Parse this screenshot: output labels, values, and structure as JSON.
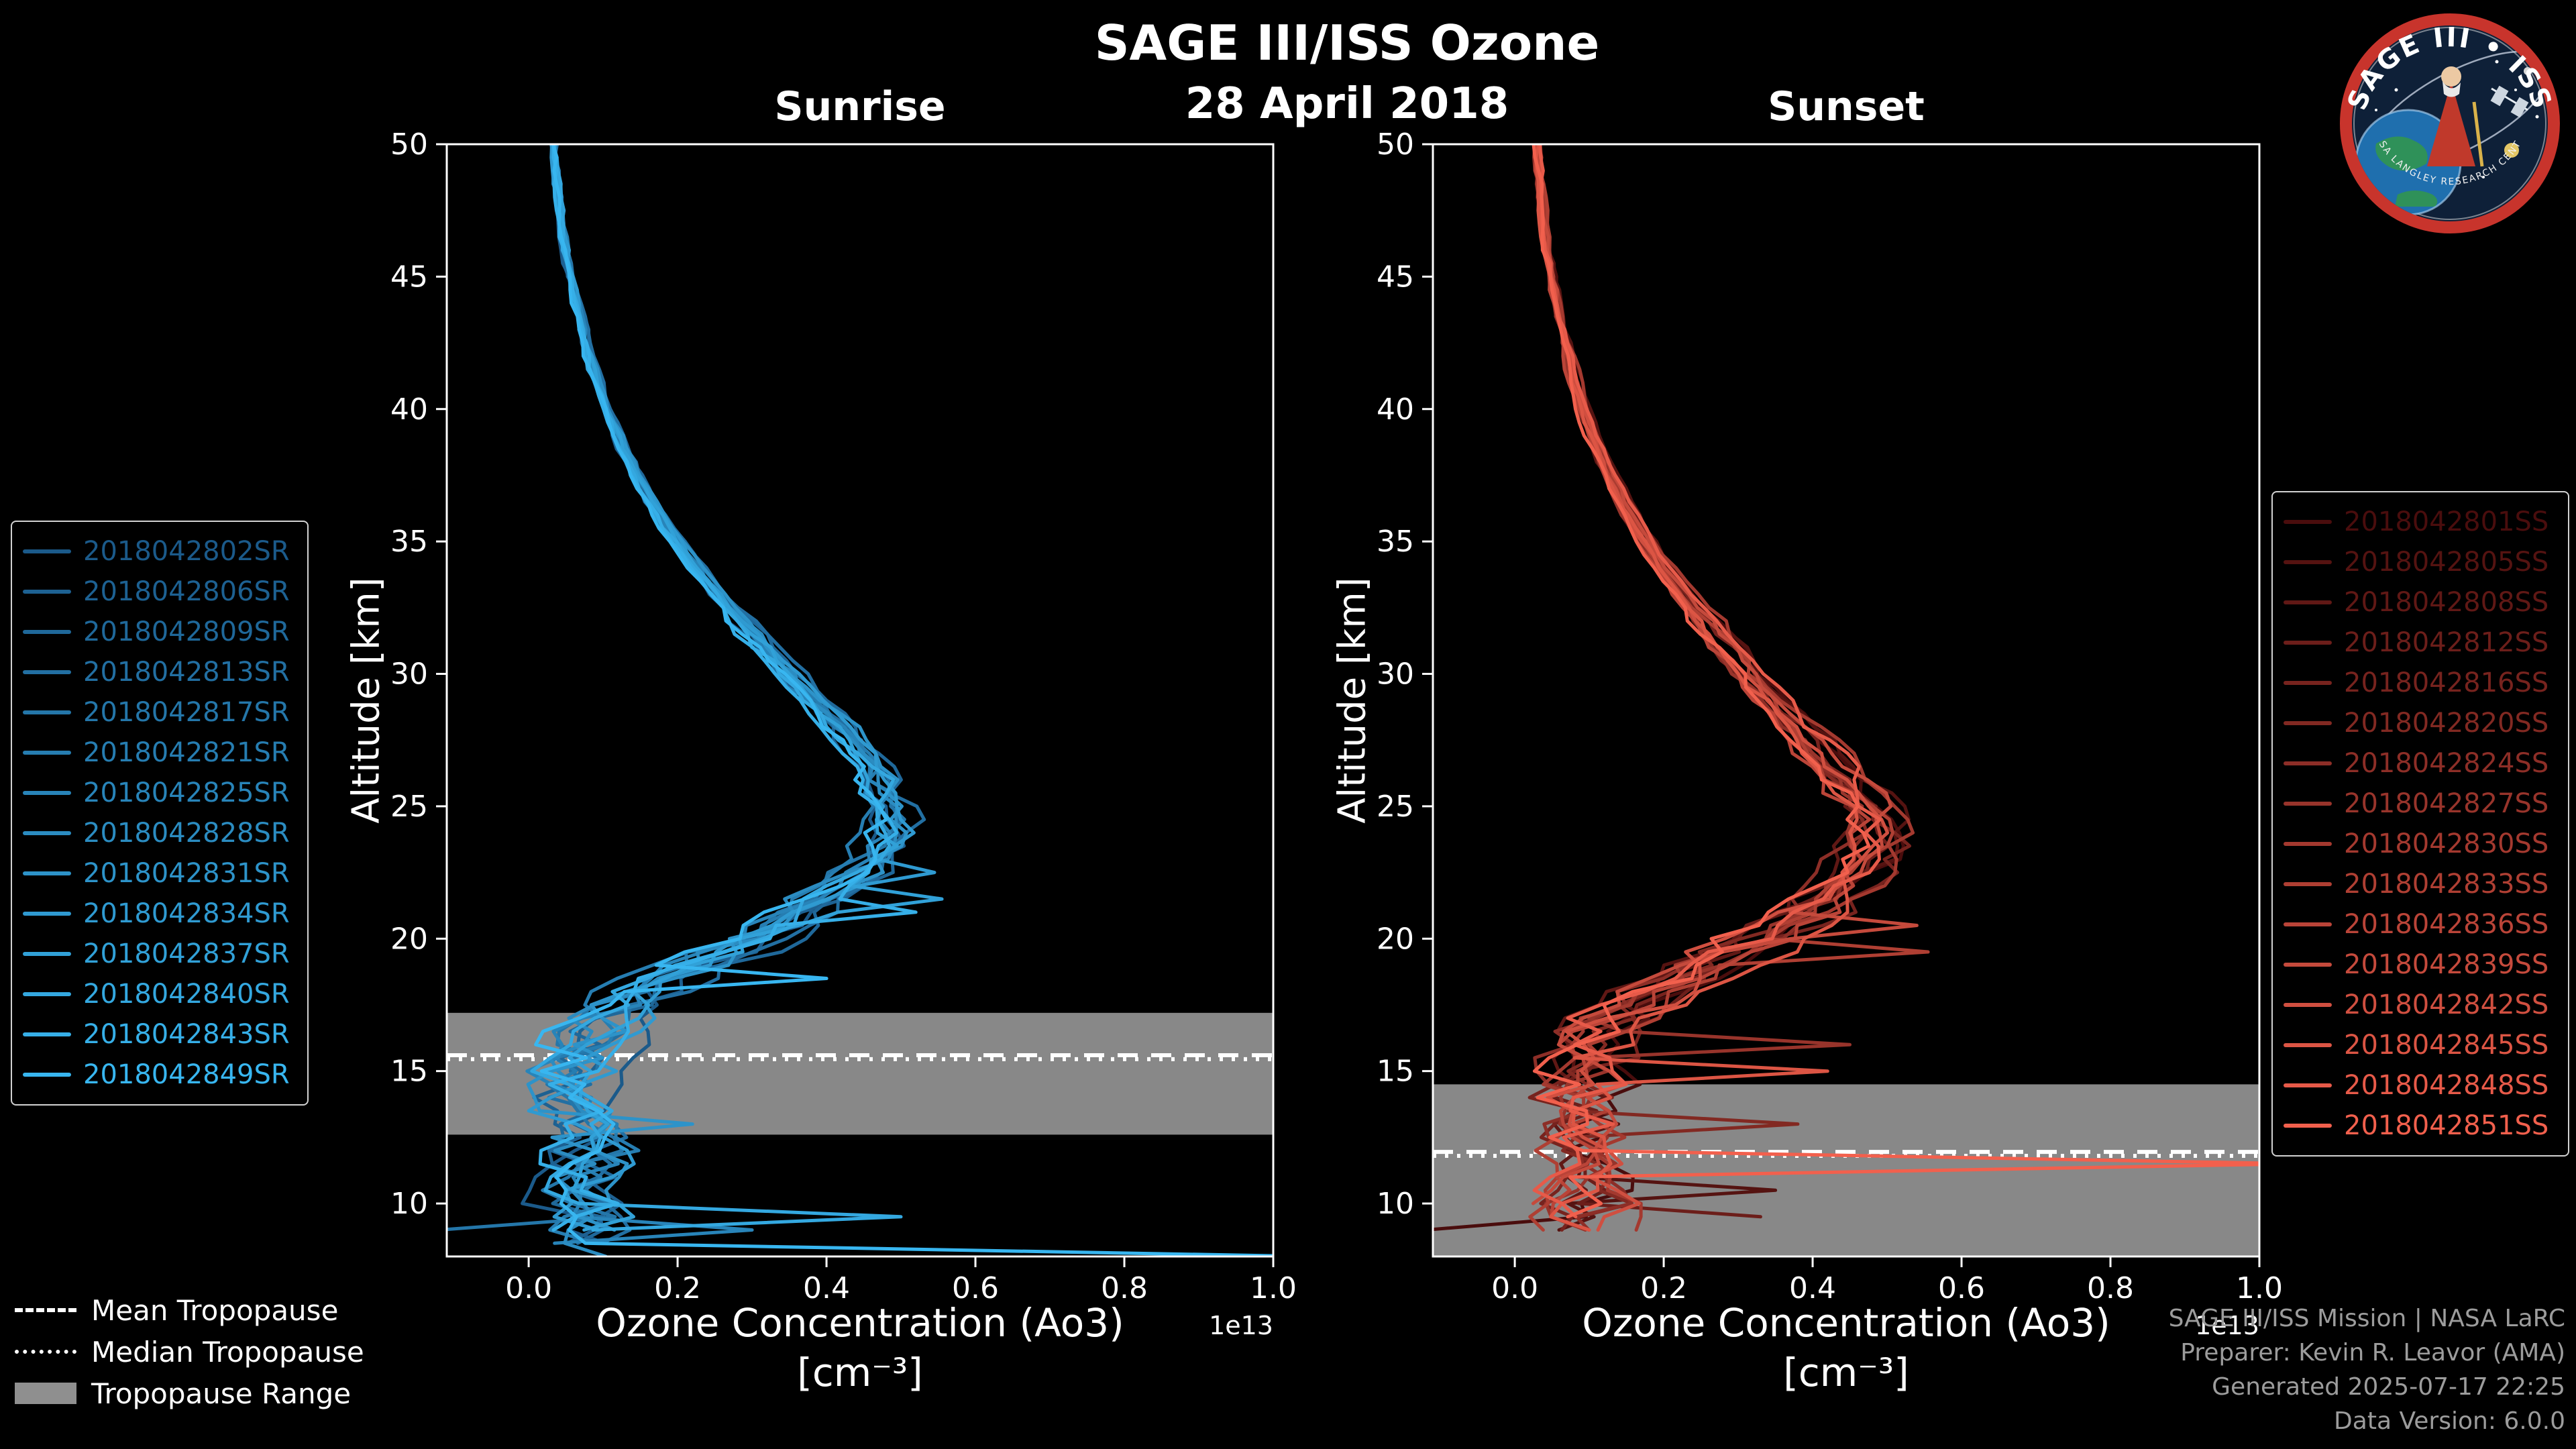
{
  "page": {
    "background": "#000000"
  },
  "header": {
    "title": "SAGE III/ISS Ozone",
    "date": "28 April 2018"
  },
  "logo": {
    "title_text": "SAGE III • ISS",
    "ring_text": "NASA LANGLEY RESEARCH CENTER",
    "ring_color": "#c8342c",
    "bg_color": "#0e2038"
  },
  "credits": {
    "line1": "SAGE III/ISS Mission | NASA LaRC",
    "line2": "Preparer: Kevin R. Leavor (AMA)",
    "line3": "Generated 2025-07-17 22:25",
    "line4": "Data Version: 6.0.0"
  },
  "tropopause_legend": {
    "mean_label": "Mean Tropopause",
    "median_label": "Median Tropopause",
    "range_label": "Tropopause Range",
    "range_color": "#8f8f8f"
  },
  "chart_data": {
    "type": "line",
    "title": "SAGE III/ISS Ozone",
    "subtitle": "28 April 2018",
    "xlabel": "Ozone Concentration (Ao3)",
    "xlabel_units": "[cm⁻³]",
    "offset_label": "1e13",
    "ylabel": "Altitude [km]",
    "xlim": [
      -0.11,
      1.0
    ],
    "ylim": [
      8,
      50
    ],
    "xticks": [
      "0.0",
      "0.2",
      "0.4",
      "0.6",
      "0.8",
      "1.0"
    ],
    "xtick_values": [
      0.0,
      0.2,
      0.4,
      0.6,
      0.8,
      1.0
    ],
    "yticks": [
      "10",
      "15",
      "20",
      "25",
      "30",
      "35",
      "40",
      "45",
      "50"
    ],
    "ytick_values": [
      10,
      15,
      20,
      25,
      30,
      35,
      40,
      45,
      50
    ],
    "grid": false,
    "panels": [
      {
        "id": "sunrise",
        "title": "Sunrise",
        "legend_position": "left",
        "tropopause": {
          "mean_km": 15.6,
          "median_km": 15.45,
          "range_km": [
            12.6,
            17.2
          ]
        },
        "end_altitude_km": [
          8.1,
          9.4
        ],
        "scale_spread": 0.1,
        "altitude_jitter_km": 1.0,
        "profile_altitudes_km": [
          50,
          49,
          48,
          47,
          46,
          45,
          44,
          43,
          42,
          41,
          40,
          39,
          38,
          37,
          36,
          35,
          34,
          33,
          32,
          31,
          30,
          29,
          28,
          27,
          26,
          25,
          24,
          23,
          22,
          21,
          20,
          19,
          18,
          17,
          16,
          15,
          14,
          13,
          12,
          11,
          10,
          9,
          8
        ],
        "profile_mean_concentration_1e13": [
          0.033,
          0.036,
          0.04,
          0.045,
          0.05,
          0.056,
          0.063,
          0.071,
          0.08,
          0.091,
          0.104,
          0.119,
          0.136,
          0.155,
          0.176,
          0.2,
          0.226,
          0.254,
          0.284,
          0.315,
          0.348,
          0.382,
          0.416,
          0.448,
          0.474,
          0.49,
          0.488,
          0.468,
          0.43,
          0.37,
          0.295,
          0.22,
          0.155,
          0.105,
          0.075,
          0.062,
          0.058,
          0.06,
          0.066,
          0.072,
          0.076,
          0.078,
          0.08
        ],
        "spikes": [
          {
            "series": 9,
            "alt": 22.3,
            "value": 0.545
          },
          {
            "series": 10,
            "alt": 21.4,
            "value": 0.555
          },
          {
            "series": 12,
            "alt": 20.8,
            "value": 0.52
          },
          {
            "series": 13,
            "alt": 18.6,
            "value": 0.4
          },
          {
            "series": 8,
            "alt": 13.2,
            "value": 0.22
          },
          {
            "series": 4,
            "alt": 9.2,
            "value": -0.12
          },
          {
            "series": 6,
            "alt": 8.9,
            "value": 0.3
          },
          {
            "series": 11,
            "alt": 9.3,
            "value": 0.5
          },
          {
            "series": 13,
            "alt": 8.2,
            "value": 1.05
          }
        ],
        "series": [
          {
            "name": "2018042802SR",
            "color": "#1b5a8a"
          },
          {
            "name": "2018042806SR",
            "color": "#1d6192"
          },
          {
            "name": "2018042809SR",
            "color": "#1f689a"
          },
          {
            "name": "2018042813SR",
            "color": "#226fa2"
          },
          {
            "name": "2018042817SR",
            "color": "#2476a9"
          },
          {
            "name": "2018042821SR",
            "color": "#267db1"
          },
          {
            "name": "2018042825SR",
            "color": "#2884b9"
          },
          {
            "name": "2018042828SR",
            "color": "#2b8cc1"
          },
          {
            "name": "2018042831SR",
            "color": "#2d93c9"
          },
          {
            "name": "2018042834SR",
            "color": "#2f9ad1"
          },
          {
            "name": "2018042837SR",
            "color": "#31a1d8"
          },
          {
            "name": "2018042840SR",
            "color": "#34a8e0"
          },
          {
            "name": "2018042843SR",
            "color": "#36afe8"
          },
          {
            "name": "2018042849SR",
            "color": "#38b6f0"
          }
        ]
      },
      {
        "id": "sunset",
        "title": "Sunset",
        "legend_position": "right",
        "tropopause": {
          "mean_km": 11.95,
          "median_km": 11.8,
          "range_km": [
            8.0,
            14.5
          ]
        },
        "end_altitude_km": [
          8.6,
          9.8
        ],
        "scale_spread": 0.14,
        "altitude_jitter_km": 1.4,
        "profile_altitudes_km": [
          50,
          49,
          48,
          47,
          46,
          45,
          44,
          43,
          42,
          41,
          40,
          39,
          38,
          37,
          36,
          35,
          34,
          33,
          32,
          31,
          30,
          29,
          28,
          27,
          26,
          25,
          24,
          23,
          22,
          21,
          20,
          19,
          18,
          17,
          16,
          15,
          14,
          13,
          12,
          11,
          10,
          9,
          8
        ],
        "profile_mean_concentration_1e13": [
          0.03,
          0.033,
          0.036,
          0.04,
          0.045,
          0.051,
          0.057,
          0.064,
          0.072,
          0.081,
          0.092,
          0.105,
          0.12,
          0.137,
          0.155,
          0.176,
          0.2,
          0.227,
          0.255,
          0.285,
          0.315,
          0.348,
          0.38,
          0.41,
          0.44,
          0.475,
          0.49,
          0.48,
          0.45,
          0.4,
          0.34,
          0.27,
          0.2,
          0.145,
          0.105,
          0.085,
          0.08,
          0.085,
          0.09,
          0.095,
          0.1,
          0.105,
          0.105
        ],
        "spikes": [
          {
            "series": 9,
            "alt": 19.6,
            "value": 0.555
          },
          {
            "series": 11,
            "alt": 20.4,
            "value": 0.54
          },
          {
            "series": 7,
            "alt": 16.2,
            "value": 0.45
          },
          {
            "series": 13,
            "alt": 14.8,
            "value": 0.42
          },
          {
            "series": 5,
            "alt": 13.0,
            "value": 0.38
          },
          {
            "series": 1,
            "alt": 10.7,
            "value": 0.35
          },
          {
            "series": 3,
            "alt": 9.6,
            "value": 0.33
          },
          {
            "series": 15,
            "alt": 11.5,
            "value": 1.05
          },
          {
            "series": 0,
            "alt": 9.0,
            "value": -0.12
          }
        ],
        "series": [
          {
            "name": "2018042801SS",
            "color": "#4a0d0d"
          },
          {
            "name": "2018042805SS",
            "color": "#551311"
          },
          {
            "name": "2018042808SS",
            "color": "#601815"
          },
          {
            "name": "2018042812SS",
            "color": "#6c1e1a"
          },
          {
            "name": "2018042816SS",
            "color": "#77231e"
          },
          {
            "name": "2018042820SS",
            "color": "#822922"
          },
          {
            "name": "2018042824SS",
            "color": "#8d2e27"
          },
          {
            "name": "2018042827SS",
            "color": "#98342b"
          },
          {
            "name": "2018042830SS",
            "color": "#a4392f"
          },
          {
            "name": "2018042833SS",
            "color": "#af3f33"
          },
          {
            "name": "2018042836SS",
            "color": "#ba4438"
          },
          {
            "name": "2018042839SS",
            "color": "#c54a3c"
          },
          {
            "name": "2018042842SS",
            "color": "#d04f40"
          },
          {
            "name": "2018042845SS",
            "color": "#dc5544"
          },
          {
            "name": "2018042848SS",
            "color": "#e75a49"
          },
          {
            "name": "2018042851SS",
            "color": "#f2604d"
          }
        ]
      }
    ]
  }
}
